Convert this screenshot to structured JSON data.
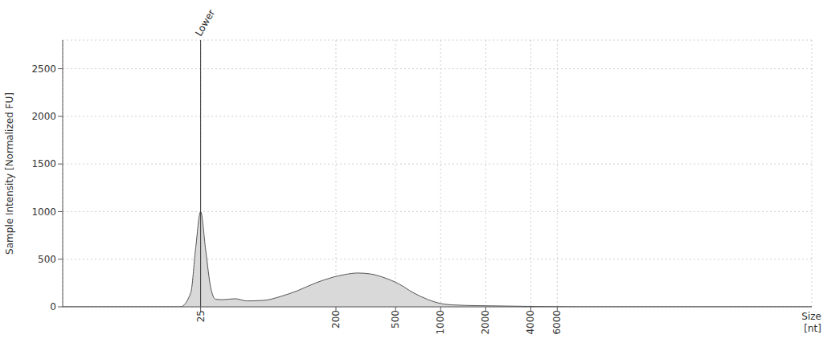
{
  "chart_data": {
    "type": "area",
    "x_label": "Size [nt]",
    "y_label": "Sample Intensity [Normalized FU]",
    "x": [
      3,
      18.3,
      21.5,
      23.1,
      25,
      27,
      29.2,
      31.5,
      35,
      42.3,
      51.2,
      66,
      86,
      111,
      146,
      190,
      231,
      280,
      341,
      413,
      527,
      654,
      812,
      1000,
      1212,
      1780,
      2700,
      4550,
      8500,
      300000
    ],
    "values": [
      0,
      0,
      150,
      600,
      1000,
      600,
      200,
      80,
      75,
      85,
      62,
      68,
      110,
      170,
      250,
      310,
      340,
      355,
      345,
      310,
      240,
      150,
      80,
      35,
      20,
      12,
      8,
      3,
      0,
      0
    ],
    "color": "#d9d9d9",
    "log": "x",
    "xlim": [
      3,
      300000
    ],
    "xticks": [
      25,
      200,
      500,
      1000,
      2000,
      4000,
      6000
    ],
    "ylim": [
      0,
      2800
    ],
    "yticks": [
      0,
      500,
      1000,
      1500,
      2000,
      2500
    ],
    "grid": true,
    "annotations": [
      {
        "text": "Lower",
        "x": 25
      }
    ]
  }
}
